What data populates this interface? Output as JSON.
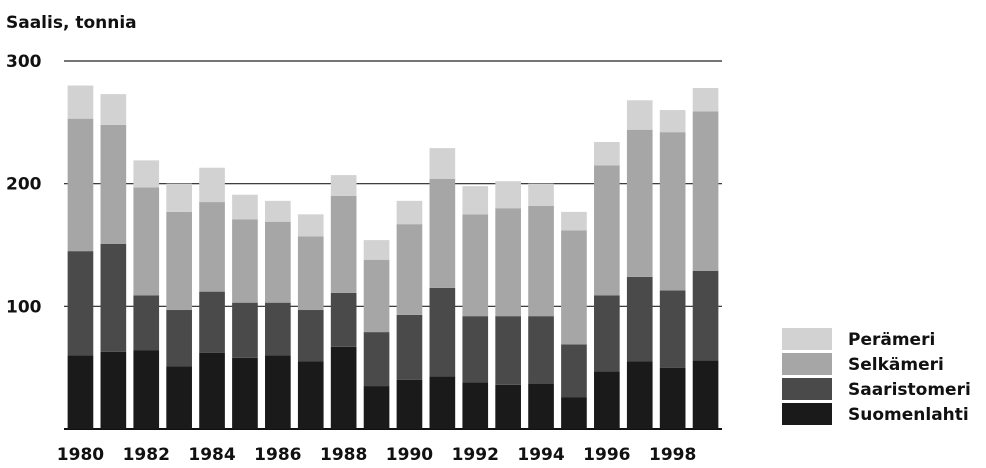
{
  "chart_data": {
    "type": "bar",
    "stacked": true,
    "title": "",
    "ylabel": "Saalis, tonnia",
    "xlabel": "",
    "ylim": [
      0,
      300
    ],
    "yticks": [
      100,
      200,
      300
    ],
    "grid": true,
    "legend_position": "right-bottom",
    "categories": [
      "1980",
      "1981",
      "1982",
      "1983",
      "1984",
      "1985",
      "1986",
      "1987",
      "1988",
      "1989",
      "1990",
      "1991",
      "1992",
      "1993",
      "1994",
      "1995",
      "1996",
      "1997",
      "1998",
      "1999"
    ],
    "xtick_labels": [
      "1980",
      "1982",
      "1984",
      "1986",
      "1988",
      "1990",
      "1992",
      "1994",
      "1996",
      "1998"
    ],
    "series": [
      {
        "name": "Suomenlahti",
        "color": "#1a1a1a",
        "values": [
          60,
          63,
          64,
          51,
          62,
          58,
          60,
          55,
          67,
          35,
          40,
          43,
          38,
          36,
          37,
          26,
          47,
          55,
          50,
          56
        ]
      },
      {
        "name": "Saaristomeri",
        "color": "#4a4a4a",
        "values": [
          85,
          88,
          45,
          46,
          50,
          45,
          43,
          42,
          44,
          44,
          53,
          72,
          54,
          56,
          55,
          43,
          62,
          69,
          63,
          73
        ]
      },
      {
        "name": "Selkämeri",
        "color": "#a6a6a6",
        "values": [
          108,
          97,
          88,
          80,
          73,
          68,
          66,
          60,
          79,
          59,
          74,
          89,
          83,
          88,
          90,
          93,
          106,
          120,
          129,
          130
        ]
      },
      {
        "name": "Perämeri",
        "color": "#d2d2d2",
        "values": [
          27,
          25,
          22,
          23,
          28,
          20,
          17,
          18,
          17,
          16,
          19,
          25,
          23,
          22,
          18,
          15,
          19,
          24,
          18,
          19
        ]
      }
    ]
  }
}
